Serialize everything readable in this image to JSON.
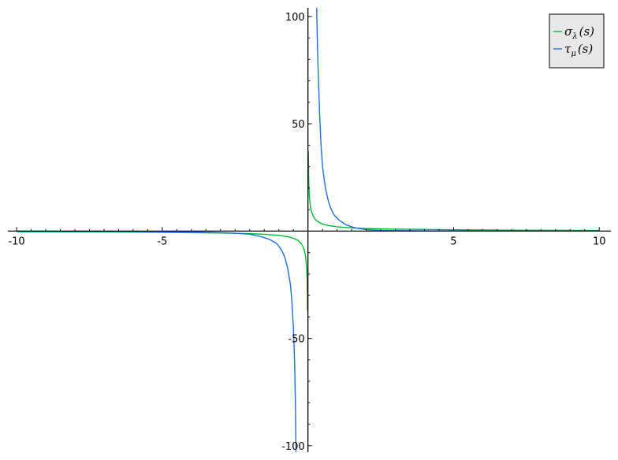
{
  "chart_data": {
    "type": "line",
    "title": "",
    "xlabel": "",
    "ylabel": "",
    "xlim": [
      -10.3,
      10.4
    ],
    "ylim": [
      -103,
      104
    ],
    "grid": false,
    "legend_position": "top-right",
    "x_ticks": [
      -10,
      -5,
      5,
      10
    ],
    "x_tick_labels": [
      "-10",
      "-5",
      "5",
      "10"
    ],
    "y_ticks": [
      100,
      50,
      -50,
      -100
    ],
    "y_tick_labels": [
      "100",
      "50",
      "-50",
      "-100"
    ],
    "series": [
      {
        "name": "σλ(s)",
        "label_main": "σ",
        "label_sub": "λ",
        "label_arg": "(s)",
        "color": "#00bb33",
        "x": [
          -10,
          -6,
          -3,
          -2,
          -1.5,
          -1,
          -0.7,
          -0.5,
          -0.35,
          -0.25,
          -0.18,
          -0.12,
          -0.08,
          -0.05,
          -0.03,
          -0.02,
          -0.015,
          null,
          0.015,
          0.02,
          0.03,
          0.05,
          0.08,
          0.12,
          0.18,
          0.25,
          0.35,
          0.5,
          0.7,
          1,
          1.5,
          2,
          3,
          5,
          7,
          10
        ],
        "y": [
          -0.3,
          -0.5,
          -0.9,
          -1.2,
          -1.5,
          -2,
          -2.6,
          -3.3,
          -4.3,
          -5.5,
          -7,
          -9,
          -12,
          -16,
          -22,
          -30,
          -37,
          null,
          37,
          30,
          22,
          16,
          12,
          9,
          7,
          5.5,
          4.3,
          3.3,
          2.6,
          2,
          1.5,
          1.2,
          0.9,
          0.6,
          0.45,
          0.3
        ]
      },
      {
        "name": "τμ(s)",
        "label_main": "τ",
        "label_sub": "μ",
        "label_arg": "(s)",
        "color": "#1f6fe0",
        "x": [
          -10,
          -6,
          -4,
          -3,
          -2.5,
          -2,
          -1.7,
          -1.5,
          -1.3,
          -1.1,
          -1,
          -0.9,
          -0.8,
          -0.7,
          -0.6,
          -0.55,
          -0.5,
          -0.47,
          -0.45,
          -0.43,
          -0.41,
          null,
          0.3,
          0.32,
          0.35,
          0.4,
          0.45,
          0.5,
          0.6,
          0.7,
          0.8,
          0.9,
          1,
          1.1,
          1.3,
          1.5,
          1.7,
          2,
          2.5,
          3,
          4,
          6,
          10
        ],
        "y": [
          -0.1,
          -0.2,
          -0.4,
          -0.7,
          -1,
          -1.5,
          -2.3,
          -3,
          -4,
          -5.5,
          -7,
          -9,
          -12,
          -17,
          -25,
          -33,
          -45,
          -56,
          -66,
          -80,
          -103,
          null,
          104,
          90,
          75,
          55,
          40,
          30,
          20,
          14,
          10,
          7.5,
          6,
          4.8,
          3,
          2,
          1.3,
          0.7,
          0.35,
          0.2,
          0.1,
          0.05,
          0.02
        ]
      }
    ]
  }
}
